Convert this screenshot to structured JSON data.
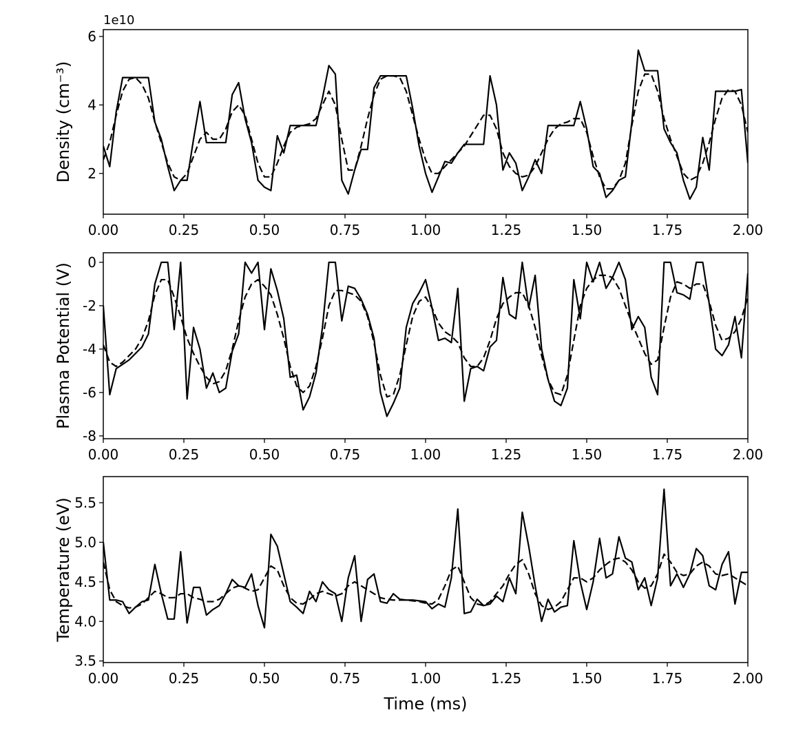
{
  "chart_data": [
    {
      "type": "line",
      "ylabel": "Density (cm⁻³)",
      "offset_label": "1e10",
      "x": [
        0,
        0.02,
        0.04,
        0.06,
        0.08,
        0.1,
        0.12,
        0.14,
        0.16,
        0.18,
        0.2,
        0.22,
        0.24,
        0.26,
        0.28,
        0.3,
        0.32,
        0.34,
        0.36,
        0.38,
        0.4,
        0.42,
        0.44,
        0.46,
        0.48,
        0.5,
        0.52,
        0.54,
        0.56,
        0.58,
        0.6,
        0.62,
        0.64,
        0.66,
        0.68,
        0.7,
        0.72,
        0.74,
        0.76,
        0.78,
        0.8,
        0.82,
        0.84,
        0.86,
        0.88,
        0.9,
        0.92,
        0.94,
        0.96,
        0.98,
        1,
        1.02,
        1.04,
        1.06,
        1.08,
        1.1,
        1.12,
        1.14,
        1.16,
        1.18,
        1.2,
        1.22,
        1.24,
        1.26,
        1.28,
        1.3,
        1.32,
        1.34,
        1.36,
        1.38,
        1.4,
        1.42,
        1.44,
        1.46,
        1.48,
        1.5,
        1.52,
        1.54,
        1.56,
        1.58,
        1.6,
        1.62,
        1.64,
        1.66,
        1.68,
        1.7,
        1.72,
        1.74,
        1.76,
        1.78,
        1.8,
        1.82,
        1.84,
        1.86,
        1.88,
        1.9,
        1.92,
        1.94,
        1.96,
        1.98,
        2
      ],
      "series": [
        {
          "color": "#000000",
          "style": "solid",
          "values": [
            2.8,
            2.2,
            3.8,
            4.8,
            4.8,
            4.8,
            4.8,
            4.8,
            3.5,
            3.0,
            2.2,
            1.5,
            1.8,
            1.8,
            3.0,
            4.1,
            2.9,
            2.9,
            2.9,
            2.9,
            4.3,
            4.65,
            3.6,
            2.9,
            1.8,
            1.6,
            1.5,
            3.1,
            2.6,
            3.4,
            3.4,
            3.4,
            3.4,
            3.4,
            4.2,
            5.15,
            4.9,
            1.8,
            1.4,
            2.1,
            2.7,
            2.7,
            4.5,
            4.85,
            4.85,
            4.85,
            4.85,
            4.85,
            3.9,
            2.8,
            2.0,
            1.45,
            1.9,
            2.35,
            2.3,
            2.6,
            2.85,
            2.85,
            2.85,
            2.85,
            4.85,
            4.0,
            2.1,
            2.6,
            2.3,
            1.5,
            1.9,
            2.4,
            2.0,
            3.4,
            3.4,
            3.4,
            3.4,
            3.4,
            4.1,
            3.3,
            2.2,
            2.0,
            1.3,
            1.5,
            1.8,
            1.9,
            3.5,
            5.6,
            5.0,
            5.0,
            5.0,
            3.3,
            2.9,
            2.6,
            1.8,
            1.25,
            1.6,
            3.05,
            2.1,
            4.4,
            4.4,
            4.4,
            4.4,
            4.45,
            2.3
          ]
        },
        {
          "color": "#000000",
          "style": "dashed",
          "values": [
            2.4,
            2.9,
            3.7,
            4.4,
            4.75,
            4.8,
            4.6,
            4.2,
            3.5,
            2.9,
            2.3,
            1.9,
            1.8,
            2.0,
            2.5,
            3.0,
            3.2,
            3.0,
            3.0,
            3.3,
            3.8,
            4.0,
            3.7,
            3.0,
            2.3,
            1.9,
            1.9,
            2.3,
            2.8,
            3.2,
            3.35,
            3.4,
            3.45,
            3.6,
            4.0,
            4.4,
            4.0,
            3.0,
            2.1,
            2.1,
            2.8,
            3.6,
            4.3,
            4.75,
            4.85,
            4.85,
            4.8,
            4.4,
            3.7,
            3.0,
            2.4,
            2.0,
            2.0,
            2.2,
            2.4,
            2.6,
            2.8,
            3.1,
            3.4,
            3.7,
            3.7,
            3.3,
            2.6,
            2.2,
            2.0,
            1.9,
            1.95,
            2.2,
            2.6,
            3.0,
            3.3,
            3.45,
            3.5,
            3.6,
            3.6,
            3.2,
            2.5,
            1.9,
            1.55,
            1.55,
            1.8,
            2.3,
            3.4,
            4.4,
            4.9,
            4.9,
            4.4,
            3.6,
            3.0,
            2.5,
            2.0,
            1.8,
            1.9,
            2.3,
            2.9,
            3.6,
            4.2,
            4.45,
            4.4,
            4.0,
            3.2
          ]
        }
      ],
      "xlim": [
        0,
        2
      ],
      "xticks": [
        {
          "value": 0,
          "label": "0.00"
        },
        {
          "value": 0.25,
          "label": "0.25"
        },
        {
          "value": 0.5,
          "label": "0.50"
        },
        {
          "value": 0.75,
          "label": "0.75"
        },
        {
          "value": 1,
          "label": "1.00"
        },
        {
          "value": 1.25,
          "label": "1.25"
        },
        {
          "value": 1.5,
          "label": "1.50"
        },
        {
          "value": 1.75,
          "label": "1.75"
        },
        {
          "value": 2,
          "label": "2.00"
        }
      ],
      "ylim": [
        0.81,
        6.2
      ],
      "yticks": [
        2,
        4,
        6
      ]
    },
    {
      "type": "line",
      "ylabel": "Plasma Potential (V)",
      "x": [
        0,
        0.02,
        0.04,
        0.06,
        0.08,
        0.1,
        0.12,
        0.14,
        0.16,
        0.18,
        0.2,
        0.22,
        0.24,
        0.26,
        0.28,
        0.3,
        0.32,
        0.34,
        0.36,
        0.38,
        0.4,
        0.42,
        0.44,
        0.46,
        0.48,
        0.5,
        0.52,
        0.54,
        0.56,
        0.58,
        0.6,
        0.62,
        0.64,
        0.66,
        0.68,
        0.7,
        0.72,
        0.74,
        0.76,
        0.78,
        0.8,
        0.82,
        0.84,
        0.86,
        0.88,
        0.9,
        0.92,
        0.94,
        0.96,
        0.98,
        1,
        1.02,
        1.04,
        1.06,
        1.08,
        1.1,
        1.12,
        1.14,
        1.16,
        1.18,
        1.2,
        1.22,
        1.24,
        1.26,
        1.28,
        1.3,
        1.32,
        1.34,
        1.36,
        1.38,
        1.4,
        1.42,
        1.44,
        1.46,
        1.48,
        1.5,
        1.52,
        1.54,
        1.56,
        1.58,
        1.6,
        1.62,
        1.64,
        1.66,
        1.68,
        1.7,
        1.72,
        1.74,
        1.76,
        1.78,
        1.8,
        1.82,
        1.84,
        1.86,
        1.88,
        1.9,
        1.92,
        1.94,
        1.96,
        1.98,
        2
      ],
      "series": [
        {
          "color": "#000000",
          "style": "solid",
          "values": [
            -2.0,
            -6.1,
            -4.9,
            -4.7,
            -4.5,
            -4.2,
            -3.9,
            -3.3,
            -1.0,
            0.0,
            0.0,
            -3.1,
            0.0,
            -6.3,
            -3.0,
            -4.0,
            -5.8,
            -5.1,
            -6.0,
            -5.8,
            -4.1,
            -3.3,
            0.0,
            -0.5,
            0.0,
            -3.1,
            -0.3,
            -1.3,
            -2.6,
            -5.3,
            -5.2,
            -6.8,
            -6.2,
            -5.1,
            -3.0,
            0.0,
            0.0,
            -2.7,
            -1.1,
            -1.2,
            -1.7,
            -2.4,
            -3.5,
            -6.0,
            -7.1,
            -6.5,
            -5.8,
            -3.0,
            -1.9,
            -1.4,
            -0.8,
            -2.1,
            -3.6,
            -3.5,
            -3.7,
            -1.2,
            -6.4,
            -4.9,
            -4.8,
            -5.0,
            -3.9,
            -3.6,
            -0.7,
            -2.4,
            -2.6,
            0.0,
            -2.1,
            -0.6,
            -4.0,
            -5.4,
            -6.4,
            -6.6,
            -5.8,
            -0.8,
            -2.6,
            0.0,
            -0.9,
            0.0,
            -1.2,
            -0.7,
            0.0,
            -0.8,
            -3.1,
            -2.5,
            -3.0,
            -5.3,
            -6.1,
            0.0,
            0.0,
            -1.4,
            -1.5,
            -1.7,
            0.0,
            0.0,
            -1.9,
            -4.0,
            -4.3,
            -3.8,
            -2.5,
            -4.4,
            -0.5
          ]
        },
        {
          "color": "#000000",
          "style": "dashed",
          "values": [
            -3.8,
            -4.6,
            -4.8,
            -4.6,
            -4.3,
            -4.0,
            -3.5,
            -2.7,
            -1.5,
            -0.8,
            -0.8,
            -1.6,
            -2.5,
            -3.5,
            -4.2,
            -4.8,
            -5.3,
            -5.6,
            -5.5,
            -5.0,
            -4.0,
            -2.7,
            -1.6,
            -1.0,
            -0.8,
            -1.1,
            -1.5,
            -2.4,
            -3.5,
            -4.8,
            -5.7,
            -6.0,
            -5.7,
            -4.8,
            -3.5,
            -2.0,
            -1.3,
            -1.3,
            -1.4,
            -1.5,
            -1.8,
            -2.5,
            -3.7,
            -5.2,
            -6.2,
            -6.1,
            -5.2,
            -3.8,
            -2.5,
            -1.8,
            -1.6,
            -2.1,
            -2.8,
            -3.2,
            -3.4,
            -3.7,
            -4.4,
            -4.8,
            -4.8,
            -4.4,
            -3.6,
            -2.6,
            -1.9,
            -1.6,
            -1.4,
            -1.4,
            -2.0,
            -3.0,
            -4.3,
            -5.4,
            -6.0,
            -6.1,
            -5.2,
            -3.6,
            -2.0,
            -1.2,
            -0.8,
            -0.6,
            -0.6,
            -0.7,
            -1.2,
            -2.0,
            -2.8,
            -3.5,
            -4.2,
            -4.7,
            -4.5,
            -3.0,
            -1.6,
            -0.9,
            -1.0,
            -1.2,
            -1.0,
            -1.0,
            -1.8,
            -2.9,
            -3.6,
            -3.5,
            -3.2,
            -2.6,
            -1.6
          ]
        }
      ],
      "xlim": [
        0,
        2
      ],
      "xticks": [
        {
          "value": 0,
          "label": "0.00"
        },
        {
          "value": 0.25,
          "label": "0.25"
        },
        {
          "value": 0.5,
          "label": "0.50"
        },
        {
          "value": 0.75,
          "label": "0.75"
        },
        {
          "value": 1,
          "label": "1.00"
        },
        {
          "value": 1.25,
          "label": "1.25"
        },
        {
          "value": 1.5,
          "label": "1.50"
        },
        {
          "value": 1.75,
          "label": "1.75"
        },
        {
          "value": 2,
          "label": "2.00"
        }
      ],
      "ylim": [
        -8.13,
        0.44
      ],
      "yticks": [
        0,
        -2,
        -4,
        -6,
        -8
      ]
    },
    {
      "type": "line",
      "ylabel": "Temperature (eV)",
      "xlabel": "Time (ms)",
      "x": [
        0,
        0.02,
        0.04,
        0.06,
        0.08,
        0.1,
        0.12,
        0.14,
        0.16,
        0.18,
        0.2,
        0.22,
        0.24,
        0.26,
        0.28,
        0.3,
        0.32,
        0.34,
        0.36,
        0.38,
        0.4,
        0.42,
        0.44,
        0.46,
        0.48,
        0.5,
        0.52,
        0.54,
        0.56,
        0.58,
        0.6,
        0.62,
        0.64,
        0.66,
        0.68,
        0.7,
        0.72,
        0.74,
        0.76,
        0.78,
        0.8,
        0.82,
        0.84,
        0.86,
        0.88,
        0.9,
        0.92,
        0.94,
        0.96,
        0.98,
        1,
        1.02,
        1.04,
        1.06,
        1.08,
        1.1,
        1.12,
        1.14,
        1.16,
        1.18,
        1.2,
        1.22,
        1.24,
        1.26,
        1.28,
        1.3,
        1.32,
        1.34,
        1.36,
        1.38,
        1.4,
        1.42,
        1.44,
        1.46,
        1.48,
        1.5,
        1.52,
        1.54,
        1.56,
        1.58,
        1.6,
        1.62,
        1.64,
        1.66,
        1.68,
        1.7,
        1.72,
        1.74,
        1.76,
        1.78,
        1.8,
        1.82,
        1.84,
        1.86,
        1.88,
        1.9,
        1.92,
        1.94,
        1.96,
        1.98,
        2
      ],
      "series": [
        {
          "color": "#000000",
          "style": "solid",
          "values": [
            5.0,
            4.27,
            4.27,
            4.25,
            4.1,
            4.18,
            4.25,
            4.27,
            4.72,
            4.35,
            4.03,
            4.03,
            4.88,
            3.98,
            4.43,
            4.43,
            4.08,
            4.15,
            4.2,
            4.35,
            4.53,
            4.45,
            4.43,
            4.6,
            4.2,
            3.92,
            5.1,
            4.95,
            4.6,
            4.25,
            4.18,
            4.1,
            4.38,
            4.25,
            4.5,
            4.4,
            4.35,
            4.0,
            4.55,
            4.83,
            4.0,
            4.53,
            4.6,
            4.25,
            4.23,
            4.35,
            4.28,
            4.27,
            4.27,
            4.26,
            4.25,
            4.16,
            4.22,
            4.18,
            4.55,
            5.42,
            4.1,
            4.12,
            4.28,
            4.2,
            4.22,
            4.32,
            4.25,
            4.55,
            4.35,
            5.38,
            4.95,
            4.45,
            4.0,
            4.28,
            4.12,
            4.18,
            4.2,
            5.02,
            4.5,
            4.15,
            4.5,
            5.05,
            4.55,
            4.6,
            5.07,
            4.8,
            4.75,
            4.4,
            4.55,
            4.2,
            4.55,
            5.67,
            4.45,
            4.6,
            4.43,
            4.6,
            4.92,
            4.83,
            4.45,
            4.4,
            4.72,
            4.88,
            4.22,
            4.62,
            4.62
          ]
        },
        {
          "color": "#000000",
          "style": "dashed",
          "values": [
            4.75,
            4.4,
            4.25,
            4.2,
            4.17,
            4.18,
            4.22,
            4.3,
            4.38,
            4.35,
            4.3,
            4.3,
            4.35,
            4.35,
            4.3,
            4.28,
            4.25,
            4.25,
            4.28,
            4.35,
            4.42,
            4.45,
            4.42,
            4.38,
            4.4,
            4.55,
            4.7,
            4.65,
            4.45,
            4.3,
            4.23,
            4.22,
            4.28,
            4.35,
            4.38,
            4.35,
            4.32,
            4.35,
            4.45,
            4.5,
            4.45,
            4.4,
            4.35,
            4.3,
            4.28,
            4.27,
            4.27,
            4.27,
            4.26,
            4.25,
            4.23,
            4.22,
            4.28,
            4.45,
            4.65,
            4.7,
            4.5,
            4.3,
            4.22,
            4.2,
            4.25,
            4.35,
            4.45,
            4.6,
            4.72,
            4.78,
            4.6,
            4.35,
            4.2,
            4.15,
            4.18,
            4.25,
            4.4,
            4.55,
            4.55,
            4.5,
            4.55,
            4.65,
            4.72,
            4.78,
            4.8,
            4.75,
            4.65,
            4.5,
            4.42,
            4.45,
            4.6,
            4.85,
            4.75,
            4.62,
            4.58,
            4.6,
            4.7,
            4.75,
            4.7,
            4.6,
            4.58,
            4.6,
            4.55,
            4.5,
            4.45
          ]
        }
      ],
      "xlim": [
        0,
        2
      ],
      "xticks": [
        {
          "value": 0,
          "label": "0.00"
        },
        {
          "value": 0.25,
          "label": "0.25"
        },
        {
          "value": 0.5,
          "label": "0.50"
        },
        {
          "value": 0.75,
          "label": "0.75"
        },
        {
          "value": 1,
          "label": "1.00"
        },
        {
          "value": 1.25,
          "label": "1.25"
        },
        {
          "value": 1.5,
          "label": "1.50"
        },
        {
          "value": 1.75,
          "label": "1.75"
        },
        {
          "value": 2,
          "label": "2.00"
        }
      ],
      "ylim": [
        3.48,
        5.83
      ],
      "yticks": [
        3.5,
        {
          "value": 4,
          "label": "4.0"
        },
        4.5,
        {
          "value": 5,
          "label": "5.0"
        },
        5.5
      ]
    }
  ]
}
